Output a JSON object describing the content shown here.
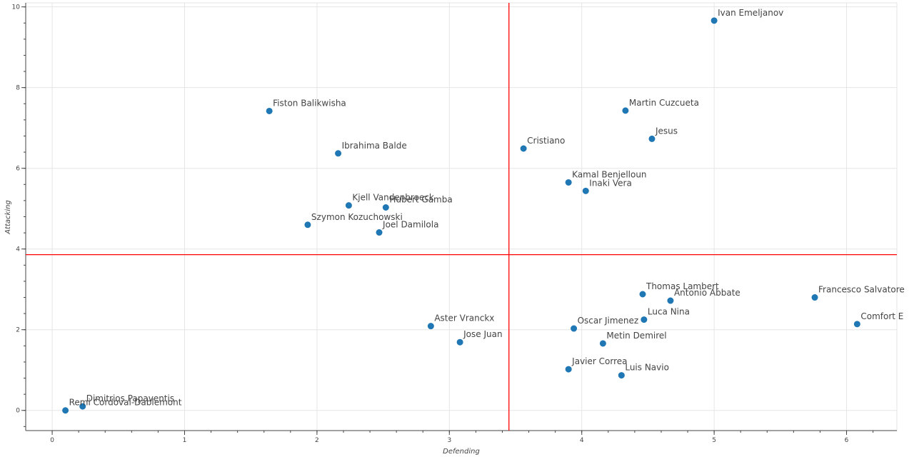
{
  "chart_data": {
    "type": "scatter",
    "title": "",
    "xlabel": "Defending",
    "ylabel": "Attacking",
    "xlim": [
      -0.2,
      6.38
    ],
    "ylim": [
      -0.5,
      10.1
    ],
    "x_ticks": [
      0,
      1,
      2,
      3,
      4,
      5,
      6
    ],
    "y_ticks": [
      0,
      2,
      4,
      6,
      8,
      10
    ],
    "grid": true,
    "point_color": "#1f77b4",
    "reference_line_color": "#ff0000",
    "reference_lines": {
      "x": 3.45,
      "y": 3.86
    },
    "points": [
      {
        "name": "Ivan Emeljanov",
        "x": 5.0,
        "y": 9.66
      },
      {
        "name": "Martin Cuzcueta",
        "x": 4.33,
        "y": 7.43
      },
      {
        "name": "Fiston Balikwisha",
        "x": 1.64,
        "y": 7.42
      },
      {
        "name": "Jesus",
        "x": 4.53,
        "y": 6.73
      },
      {
        "name": "Cristiano",
        "x": 3.56,
        "y": 6.49
      },
      {
        "name": "Ibrahima Balde",
        "x": 2.16,
        "y": 6.37
      },
      {
        "name": "Kamal Benjelloun",
        "x": 3.9,
        "y": 5.65
      },
      {
        "name": "Inaki Vera",
        "x": 4.03,
        "y": 5.44
      },
      {
        "name": "Kjell Vandenbroeck",
        "x": 2.24,
        "y": 5.08
      },
      {
        "name": "Hubert Gamba",
        "x": 2.52,
        "y": 5.03
      },
      {
        "name": "Szymon Kozuchowski",
        "x": 1.93,
        "y": 4.6
      },
      {
        "name": "Joel Damilola",
        "x": 2.47,
        "y": 4.41
      },
      {
        "name": "Thomas Lambert",
        "x": 4.46,
        "y": 2.88
      },
      {
        "name": "Francesco Salvatore",
        "x": 5.76,
        "y": 2.8
      },
      {
        "name": "Antonio Abbate",
        "x": 4.67,
        "y": 2.72
      },
      {
        "name": "Luca Nina",
        "x": 4.47,
        "y": 2.25
      },
      {
        "name": "Comfort E",
        "x": 6.08,
        "y": 2.14
      },
      {
        "name": "Aster Vranckx",
        "x": 2.86,
        "y": 2.09
      },
      {
        "name": "Oscar Jimenez",
        "x": 3.94,
        "y": 2.03
      },
      {
        "name": "Jose Juan",
        "x": 3.08,
        "y": 1.69
      },
      {
        "name": "Metin Demirel",
        "x": 4.16,
        "y": 1.66
      },
      {
        "name": "Javier Correa",
        "x": 3.9,
        "y": 1.02
      },
      {
        "name": "Luis Navio",
        "x": 4.3,
        "y": 0.87
      },
      {
        "name": "Dimitrios Papaventis",
        "x": 0.23,
        "y": 0.1
      },
      {
        "name": "Remi Cordoval-Dablemont",
        "x": 0.1,
        "y": 0.0
      }
    ]
  }
}
